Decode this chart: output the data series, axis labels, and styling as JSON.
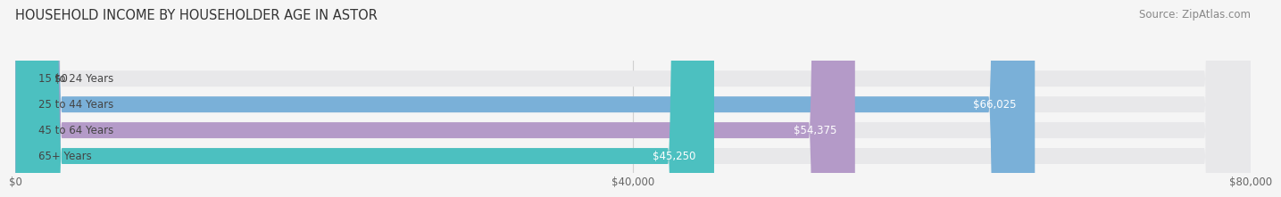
{
  "title": "HOUSEHOLD INCOME BY HOUSEHOLDER AGE IN ASTOR",
  "source": "Source: ZipAtlas.com",
  "categories": [
    "15 to 24 Years",
    "25 to 44 Years",
    "45 to 64 Years",
    "65+ Years"
  ],
  "values": [
    0,
    66025,
    54375,
    45250
  ],
  "labels": [
    "$0",
    "$66,025",
    "$54,375",
    "$45,250"
  ],
  "bar_colors": [
    "#f0a0a8",
    "#7ab0d8",
    "#b49ac8",
    "#4cc0c0"
  ],
  "bar_bg_color": "#e8e8ea",
  "xlim": [
    0,
    80000
  ],
  "xtick_values": [
    0,
    40000,
    80000
  ],
  "xtick_labels": [
    "$0",
    "$40,000",
    "$80,000"
  ],
  "title_fontsize": 10.5,
  "source_fontsize": 8.5,
  "label_fontsize": 8.5,
  "cat_fontsize": 8.5,
  "tick_fontsize": 8.5,
  "bar_height": 0.62,
  "background_color": "#f5f5f5",
  "grid_color": "#d0d0d0"
}
